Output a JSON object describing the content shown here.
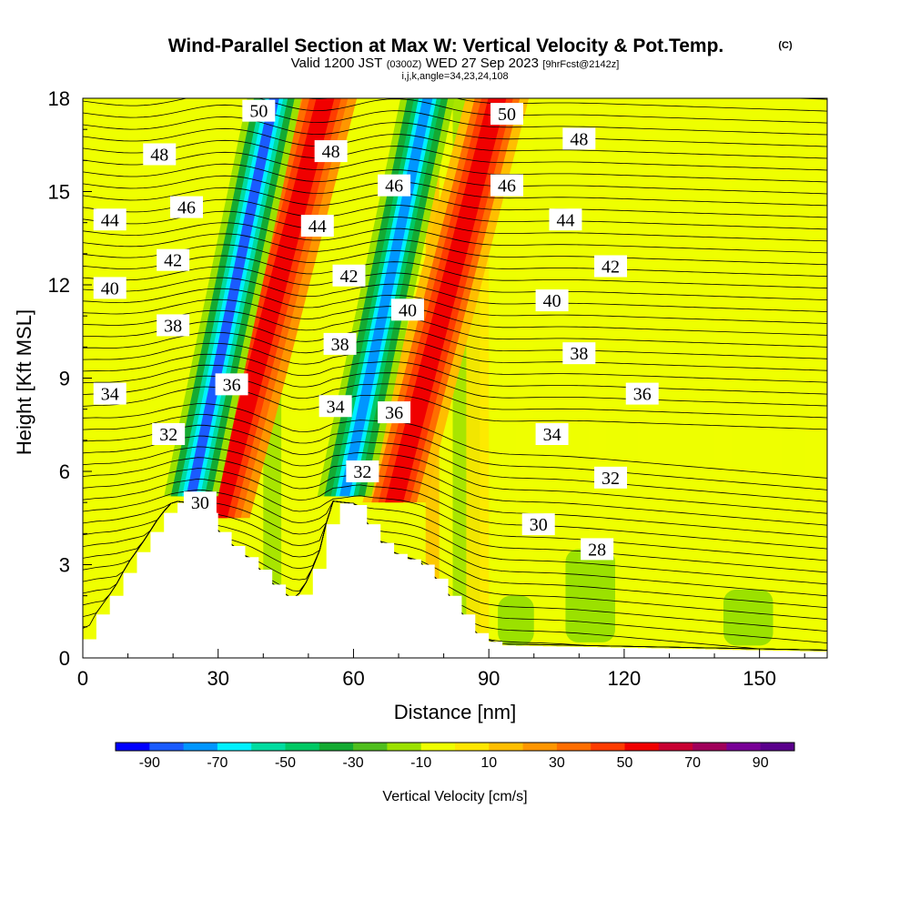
{
  "chart_data": {
    "type": "heatmap",
    "title": "Wind-Parallel Section at Max W: Vertical Velocity & Pot.Temp.",
    "title_mark": "(C)",
    "subtitle": {
      "a": "Valid 1200 JST",
      "b": "(0300Z)",
      "c": "WED 27 Sep 2023",
      "d": "[9hrFcst@2142z]"
    },
    "subtitle2": "i,j,k,angle=34,23,24,108",
    "xlabel": "Distance [nm]",
    "ylabel": "Height [Kft MSL]",
    "xlim": [
      0,
      165
    ],
    "ylim": [
      0,
      18
    ],
    "xticks": [
      0,
      30,
      60,
      90,
      120,
      150
    ],
    "yticks": [
      0,
      3,
      6,
      9,
      12,
      15,
      18
    ],
    "colorbar": {
      "label": "Vertical Velocity [cm/s]",
      "tick_labels": [
        "-90",
        "-70",
        "-50",
        "-30",
        "-10",
        "10",
        "30",
        "50",
        "70",
        "90"
      ],
      "bounds": [
        -100,
        100
      ],
      "colors": [
        "#0000ff",
        "#1a5bff",
        "#0096ff",
        "#00f0ff",
        "#00dca0",
        "#00c864",
        "#14aa32",
        "#50be1e",
        "#9be100",
        "#eeff00",
        "#ffe600",
        "#ffbe00",
        "#ff9600",
        "#ff6e00",
        "#ff3c00",
        "#f00000",
        "#c80032",
        "#a0005a",
        "#780096",
        "#5a008c"
      ]
    },
    "updraft_cores": [
      {
        "x": 24,
        "y_bottom": 5.2,
        "y_top": 18,
        "lean": 0.45,
        "value": -85
      },
      {
        "x": 58,
        "y_bottom": 5.2,
        "y_top": 18,
        "lean": 0.45,
        "value": -80
      }
    ],
    "downdraft_bands": [
      {
        "x": 30,
        "y_bottom": 4.5,
        "y_top": 18,
        "lean": 0.55,
        "value": 60
      },
      {
        "x": 69,
        "y_bottom": 5.0,
        "y_top": 18,
        "lean": 0.55,
        "value": 55
      }
    ],
    "terrain_profile": [
      [
        0,
        0.6
      ],
      [
        3,
        1.4
      ],
      [
        7,
        2.2
      ],
      [
        10,
        3.0
      ],
      [
        13,
        3.6
      ],
      [
        17,
        4.5
      ],
      [
        20,
        5.0
      ],
      [
        26,
        4.9
      ],
      [
        29,
        4.2
      ],
      [
        33,
        3.6
      ],
      [
        38,
        3.0
      ],
      [
        43,
        2.2
      ],
      [
        47,
        1.8
      ],
      [
        50,
        2.5
      ],
      [
        53,
        3.6
      ],
      [
        55,
        5.0
      ],
      [
        61,
        4.9
      ],
      [
        64,
        4.0
      ],
      [
        68,
        3.4
      ],
      [
        75,
        3.0
      ],
      [
        79,
        2.4
      ],
      [
        82,
        1.8
      ],
      [
        85,
        1.2
      ],
      [
        88,
        0.6
      ],
      [
        93,
        0.4
      ],
      [
        165,
        0.2
      ]
    ],
    "isentrope_labels": [
      {
        "text": "50",
        "x": 39,
        "y": 17.6
      },
      {
        "text": "50",
        "x": 94,
        "y": 17.5
      },
      {
        "text": "48",
        "x": 17,
        "y": 16.2
      },
      {
        "text": "48",
        "x": 55,
        "y": 16.3
      },
      {
        "text": "48",
        "x": 110,
        "y": 16.7
      },
      {
        "text": "46",
        "x": 23,
        "y": 14.5
      },
      {
        "text": "46",
        "x": 69,
        "y": 15.2
      },
      {
        "text": "46",
        "x": 94,
        "y": 15.2
      },
      {
        "text": "44",
        "x": 6,
        "y": 14.1
      },
      {
        "text": "44",
        "x": 52,
        "y": 13.9
      },
      {
        "text": "44",
        "x": 107,
        "y": 14.1
      },
      {
        "text": "42",
        "x": 20,
        "y": 12.8
      },
      {
        "text": "42",
        "x": 59,
        "y": 12.3
      },
      {
        "text": "42",
        "x": 117,
        "y": 12.6
      },
      {
        "text": "40",
        "x": 6,
        "y": 11.9
      },
      {
        "text": "40",
        "x": 72,
        "y": 11.2
      },
      {
        "text": "40",
        "x": 104,
        "y": 11.5
      },
      {
        "text": "38",
        "x": 20,
        "y": 10.7
      },
      {
        "text": "38",
        "x": 57,
        "y": 10.1
      },
      {
        "text": "38",
        "x": 110,
        "y": 9.8
      },
      {
        "text": "36",
        "x": 33,
        "y": 8.8
      },
      {
        "text": "36",
        "x": 69,
        "y": 7.9
      },
      {
        "text": "36",
        "x": 124,
        "y": 8.5
      },
      {
        "text": "34",
        "x": 6,
        "y": 8.5
      },
      {
        "text": "34",
        "x": 56,
        "y": 8.1
      },
      {
        "text": "34",
        "x": 104,
        "y": 7.2
      },
      {
        "text": "32",
        "x": 19,
        "y": 7.2
      },
      {
        "text": "32",
        "x": 62,
        "y": 6.0
      },
      {
        "text": "32",
        "x": 117,
        "y": 5.8
      },
      {
        "text": "30",
        "x": 26,
        "y": 5.0
      },
      {
        "text": "30",
        "x": 101,
        "y": 4.3
      },
      {
        "text": "28",
        "x": 114,
        "y": 3.5
      }
    ]
  }
}
